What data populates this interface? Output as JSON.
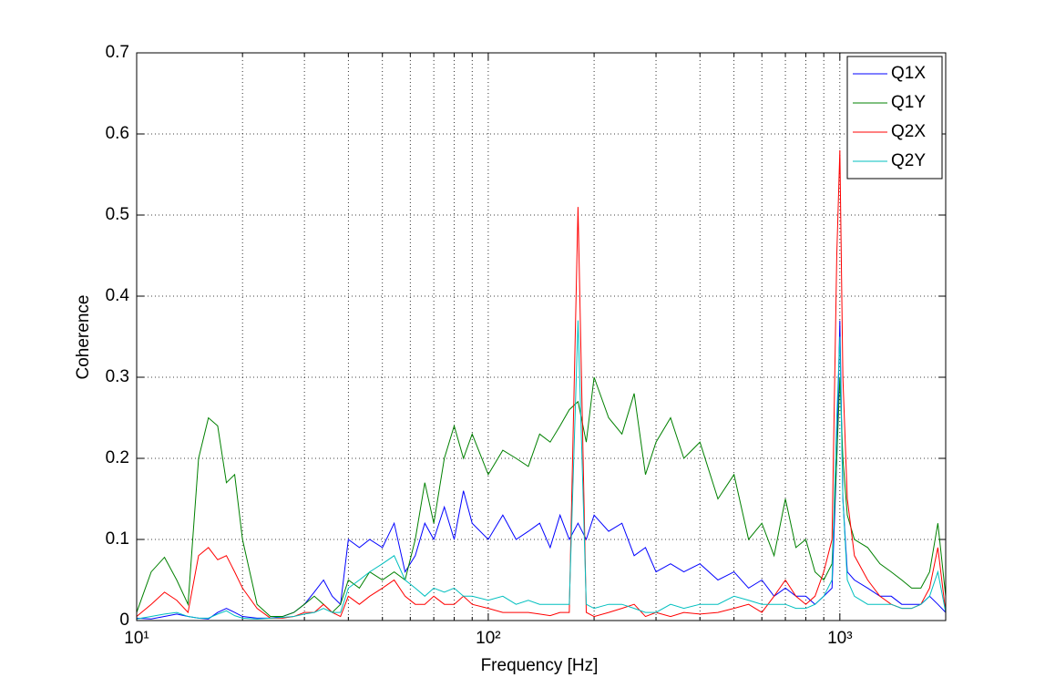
{
  "chart_data": {
    "type": "line",
    "xlabel": "Frequency [Hz]",
    "ylabel": "Coherence",
    "xscale": "log",
    "xlim": [
      10,
      2000
    ],
    "ylim": [
      0,
      0.7
    ],
    "xticks": [
      {
        "value": 10,
        "label": "10¹"
      },
      {
        "value": 100,
        "label": "10²"
      },
      {
        "value": 1000,
        "label": "10³"
      }
    ],
    "xminorticks": [
      20,
      30,
      40,
      50,
      60,
      70,
      80,
      90,
      200,
      300,
      400,
      500,
      600,
      700,
      800,
      900
    ],
    "yticks": [
      0,
      0.1,
      0.2,
      0.3,
      0.4,
      0.5,
      0.6,
      0.7
    ],
    "grid": true,
    "legend": "northeast",
    "x": [
      10,
      11,
      12,
      13,
      14,
      15,
      16,
      17,
      18,
      19,
      20,
      22,
      24,
      26,
      28,
      30,
      32,
      34,
      36,
      38,
      40,
      43,
      46,
      50,
      54,
      58,
      62,
      66,
      70,
      75,
      80,
      85,
      90,
      100,
      110,
      120,
      130,
      140,
      150,
      160,
      170,
      180,
      190,
      200,
      220,
      240,
      260,
      280,
      300,
      330,
      360,
      400,
      450,
      500,
      550,
      600,
      650,
      700,
      750,
      800,
      850,
      900,
      950,
      980,
      1000,
      1020,
      1050,
      1100,
      1200,
      1300,
      1400,
      1500,
      1600,
      1700,
      1800,
      1900,
      2000
    ],
    "series": [
      {
        "name": "Q1X",
        "color": "#0000ff",
        "values": [
          0.003,
          0.002,
          0.005,
          0.008,
          0.005,
          0.003,
          0.002,
          0.01,
          0.015,
          0.01,
          0.005,
          0.003,
          0.003,
          0.005,
          0.01,
          0.02,
          0.035,
          0.05,
          0.03,
          0.02,
          0.1,
          0.09,
          0.1,
          0.09,
          0.12,
          0.06,
          0.08,
          0.12,
          0.1,
          0.14,
          0.1,
          0.16,
          0.12,
          0.1,
          0.13,
          0.1,
          0.11,
          0.12,
          0.09,
          0.13,
          0.1,
          0.12,
          0.1,
          0.13,
          0.11,
          0.12,
          0.08,
          0.09,
          0.06,
          0.07,
          0.06,
          0.07,
          0.05,
          0.06,
          0.04,
          0.05,
          0.03,
          0.04,
          0.03,
          0.03,
          0.02,
          0.03,
          0.04,
          0.2,
          0.37,
          0.15,
          0.06,
          0.05,
          0.04,
          0.03,
          0.03,
          0.02,
          0.02,
          0.02,
          0.03,
          0.02,
          0.01
        ]
      },
      {
        "name": "Q1Y",
        "color": "#008000",
        "values": [
          0.01,
          0.06,
          0.078,
          0.05,
          0.02,
          0.2,
          0.25,
          0.24,
          0.17,
          0.18,
          0.1,
          0.02,
          0.005,
          0.005,
          0.01,
          0.02,
          0.03,
          0.02,
          0.01,
          0.02,
          0.05,
          0.04,
          0.06,
          0.05,
          0.06,
          0.05,
          0.1,
          0.17,
          0.12,
          0.2,
          0.24,
          0.2,
          0.23,
          0.18,
          0.21,
          0.2,
          0.19,
          0.23,
          0.22,
          0.24,
          0.26,
          0.27,
          0.22,
          0.3,
          0.25,
          0.23,
          0.28,
          0.18,
          0.22,
          0.25,
          0.2,
          0.22,
          0.15,
          0.18,
          0.1,
          0.12,
          0.08,
          0.15,
          0.09,
          0.1,
          0.06,
          0.05,
          0.07,
          0.2,
          0.3,
          0.2,
          0.13,
          0.1,
          0.09,
          0.07,
          0.06,
          0.05,
          0.04,
          0.04,
          0.06,
          0.12,
          0.03
        ]
      },
      {
        "name": "Q2X",
        "color": "#ff0000",
        "values": [
          0.005,
          0.02,
          0.035,
          0.025,
          0.01,
          0.08,
          0.09,
          0.075,
          0.08,
          0.06,
          0.04,
          0.015,
          0.003,
          0.003,
          0.005,
          0.01,
          0.01,
          0.02,
          0.01,
          0.005,
          0.03,
          0.02,
          0.03,
          0.04,
          0.05,
          0.03,
          0.02,
          0.02,
          0.03,
          0.02,
          0.02,
          0.03,
          0.02,
          0.015,
          0.01,
          0.01,
          0.01,
          0.008,
          0.006,
          0.01,
          0.01,
          0.51,
          0.01,
          0.005,
          0.01,
          0.015,
          0.02,
          0.005,
          0.01,
          0.005,
          0.01,
          0.008,
          0.01,
          0.015,
          0.02,
          0.01,
          0.03,
          0.05,
          0.03,
          0.02,
          0.03,
          0.06,
          0.1,
          0.45,
          0.58,
          0.3,
          0.15,
          0.08,
          0.05,
          0.03,
          0.02,
          0.015,
          0.015,
          0.02,
          0.04,
          0.09,
          0.01
        ]
      },
      {
        "name": "Q2Y",
        "color": "#00bfbf",
        "values": [
          0.002,
          0.005,
          0.008,
          0.01,
          0.005,
          0.003,
          0.003,
          0.008,
          0.012,
          0.006,
          0.003,
          0.002,
          0.003,
          0.004,
          0.005,
          0.008,
          0.01,
          0.015,
          0.01,
          0.01,
          0.04,
          0.05,
          0.06,
          0.07,
          0.08,
          0.05,
          0.04,
          0.03,
          0.04,
          0.035,
          0.04,
          0.03,
          0.03,
          0.025,
          0.03,
          0.02,
          0.025,
          0.02,
          0.02,
          0.02,
          0.02,
          0.37,
          0.02,
          0.015,
          0.02,
          0.02,
          0.015,
          0.01,
          0.01,
          0.02,
          0.015,
          0.02,
          0.02,
          0.03,
          0.025,
          0.02,
          0.02,
          0.02,
          0.015,
          0.015,
          0.02,
          0.03,
          0.05,
          0.25,
          0.35,
          0.15,
          0.05,
          0.03,
          0.02,
          0.02,
          0.02,
          0.015,
          0.015,
          0.02,
          0.03,
          0.06,
          0.01
        ]
      }
    ]
  }
}
